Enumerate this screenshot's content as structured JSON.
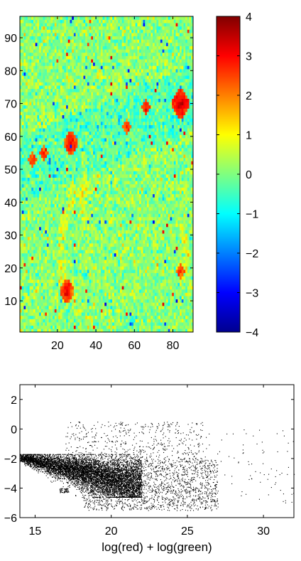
{
  "chart_data": [
    {
      "type": "heatmap",
      "title": "",
      "xlabel": "",
      "ylabel": "",
      "xlim": [
        1,
        90
      ],
      "ylim": [
        1,
        96
      ],
      "x_ticks": [
        "20",
        "40",
        "60",
        "80"
      ],
      "y_ticks": [
        "10",
        "20",
        "30",
        "40",
        "50",
        "60",
        "70",
        "80",
        "90"
      ],
      "x_tick_values": [
        20,
        40,
        60,
        80
      ],
      "y_tick_values": [
        10,
        20,
        30,
        40,
        50,
        60,
        70,
        80,
        90
      ],
      "grid": false,
      "colormap": "jet",
      "color_range": [
        -4,
        4
      ],
      "colorbar_ticks": [
        "4",
        "3",
        "2",
        "1",
        "0",
        "−1",
        "−2",
        "−3",
        "−4"
      ],
      "colorbar_tick_values": [
        4,
        3,
        2,
        1,
        0,
        -1,
        -2,
        -3,
        -4
      ],
      "background_value": 0.1,
      "hotspots": [
        {
          "x": 84,
          "y": 70,
          "value": 3.3
        },
        {
          "x": 27,
          "y": 58,
          "value": 3.0
        },
        {
          "x": 66,
          "y": 69,
          "value": 2.8
        },
        {
          "x": 56,
          "y": 63,
          "value": 2.5
        },
        {
          "x": 13,
          "y": 55,
          "value": 2.6
        },
        {
          "x": 7,
          "y": 53,
          "value": 2.7
        },
        {
          "x": 25,
          "y": 13,
          "value": 3.0
        },
        {
          "x": 84,
          "y": 19,
          "value": 2.6
        }
      ]
    },
    {
      "type": "scatter",
      "title": "",
      "xlabel": "log(red) + log(green)",
      "ylabel": "",
      "xlim": [
        14,
        32
      ],
      "ylim": [
        -6,
        3
      ],
      "x_ticks": [
        "15",
        "20",
        "25",
        "30"
      ],
      "y_ticks": [
        "2",
        "0",
        "−2",
        "−4",
        "−6"
      ],
      "x_tick_values": [
        15,
        20,
        25,
        30
      ],
      "y_tick_values": [
        2,
        0,
        -2,
        -4,
        -6
      ],
      "grid": false,
      "marker_color": "#000000",
      "point_groups": [
        {
          "name": "",
          "x_range": [
            14,
            22
          ],
          "y_range": [
            -4.6,
            -1.7
          ],
          "count": 7000
        },
        {
          "name": "",
          "x_range": [
            18,
            27
          ],
          "y_range": [
            -5.5,
            -2
          ],
          "count": 1800
        },
        {
          "name": "",
          "x_range": [
            17,
            26
          ],
          "y_range": [
            -2,
            0.5
          ],
          "count": 450
        },
        {
          "name": "",
          "x_range": [
            24,
            32
          ],
          "y_range": [
            -5,
            0
          ],
          "count": 120
        },
        {
          "name": "",
          "x_range": [
            16.6,
            17.2
          ],
          "y_range": [
            -4.3,
            -4
          ],
          "count": 60
        }
      ]
    }
  ]
}
